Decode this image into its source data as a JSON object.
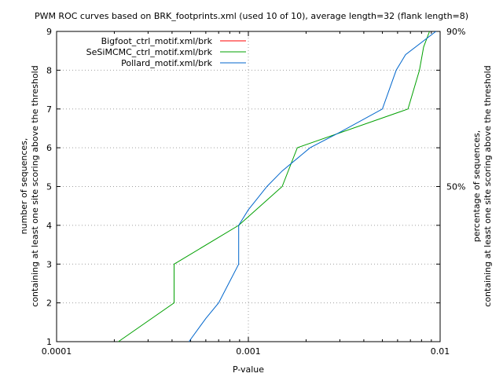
{
  "chart_data": {
    "type": "line",
    "title": "PWM ROC curves based on BRK_footprints.xml (used 10 of 10), average length=32 (flank length=8)",
    "xlabel": "P-value",
    "ylabel_line1": "number of sequences,",
    "ylabel_line2": "containing at least one site scoring above the threshold",
    "y2label_line1": "percentage of sequences,",
    "y2label_line2": "containing at least one site scoring above the threshold",
    "xscale": "log",
    "xlim": [
      0.0001,
      0.01
    ],
    "ylim": [
      1,
      9
    ],
    "x_ticks": [
      {
        "value": 0.0001,
        "label": "0.0001"
      },
      {
        "value": 0.001,
        "label": "0.001"
      },
      {
        "value": 0.01,
        "label": "0.01"
      }
    ],
    "y_ticks": [
      {
        "value": 1,
        "label": "1"
      },
      {
        "value": 2,
        "label": "2"
      },
      {
        "value": 3,
        "label": "3"
      },
      {
        "value": 4,
        "label": "4"
      },
      {
        "value": 5,
        "label": "5"
      },
      {
        "value": 6,
        "label": "6"
      },
      {
        "value": 7,
        "label": "7"
      },
      {
        "value": 8,
        "label": "8"
      },
      {
        "value": 9,
        "label": "9"
      }
    ],
    "y2_ticks": [
      {
        "value": 5,
        "label": "50%"
      },
      {
        "value": 9,
        "label": "90%"
      }
    ],
    "grid": true,
    "legend_position": "top-left",
    "series": [
      {
        "name": "Bigfoot_ctrl_motif.xml/brk",
        "color": "#ff0000",
        "points": []
      },
      {
        "name": "SeSiMCMC_ctrl_motif.xml/brk",
        "color": "#00a000",
        "points": [
          [
            0.00021,
            1
          ],
          [
            0.00041,
            2
          ],
          [
            0.00041,
            3
          ],
          [
            0.00089,
            4
          ],
          [
            0.0015,
            5
          ],
          [
            0.0018,
            6
          ],
          [
            0.0068,
            7
          ],
          [
            0.0078,
            8
          ],
          [
            0.0082,
            8.6
          ],
          [
            0.0088,
            9
          ]
        ]
      },
      {
        "name": "Pollard_motif.xml/brk",
        "color": "#0066cc",
        "points": [
          [
            0.00049,
            1
          ],
          [
            0.0006,
            1.6
          ],
          [
            0.0007,
            2
          ],
          [
            0.00079,
            2.5
          ],
          [
            0.00089,
            3
          ],
          [
            0.00089,
            4
          ],
          [
            0.001,
            4.4
          ],
          [
            0.00125,
            5
          ],
          [
            0.0015,
            5.4
          ],
          [
            0.0021,
            6
          ],
          [
            0.003,
            6.4
          ],
          [
            0.005,
            7
          ],
          [
            0.0059,
            8
          ],
          [
            0.0066,
            8.4
          ],
          [
            0.0095,
            9
          ]
        ]
      }
    ]
  }
}
